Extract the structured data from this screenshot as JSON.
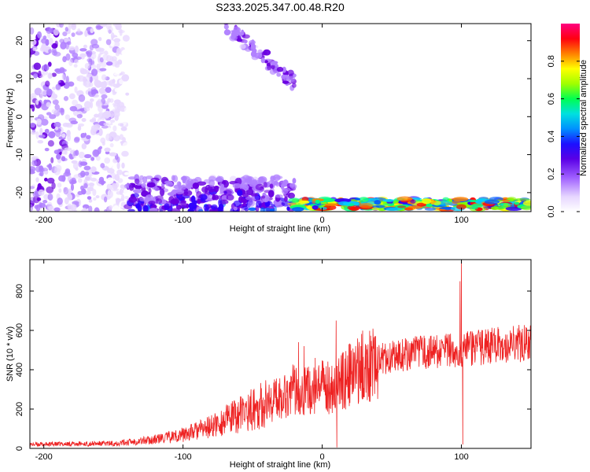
{
  "title": "S233.2025.347.00.48.R20",
  "chart_data": [
    {
      "type": "heatmap",
      "xlabel": "Height of straight line (km)",
      "ylabel": "Frequency (Hz)",
      "xlim": [
        -210,
        150
      ],
      "ylim": [
        -25,
        24.5
      ],
      "xticks": [
        -200,
        -100,
        0,
        100
      ],
      "yticks": [
        -20,
        -10,
        0,
        10,
        20
      ],
      "colorbar": {
        "label": "Normalized spectral amplitude",
        "range": [
          0,
          1
        ],
        "ticks": [
          0.0,
          0.2,
          0.4,
          0.6,
          0.8
        ],
        "tick_labels": [
          "0.0",
          "0.2",
          "0.4",
          "0.6",
          "0.8"
        ],
        "colors": [
          "#ffffff",
          "#e8d8ff",
          "#b080ff",
          "#6a00e0",
          "#3000ff",
          "#0060ff",
          "#00d0ff",
          "#00ff80",
          "#80ff00",
          "#ffff00",
          "#ff8000",
          "#ff0000",
          "#ff0080"
        ]
      },
      "regions": [
        {
          "x": [
            -210,
            -140
          ],
          "y": [
            -25,
            24.5
          ],
          "level": 0.2,
          "pattern": "scattered speckle"
        },
        {
          "x": [
            -140,
            -20
          ],
          "y": [
            -25,
            -16
          ],
          "level": 0.3,
          "pattern": "dense speckle"
        },
        {
          "x": [
            -20,
            150
          ],
          "y": [
            -25,
            -21
          ],
          "level": 0.9,
          "pattern": "narrow band"
        },
        {
          "x": [
            -70,
            -20
          ],
          "y": [
            9,
            24
          ],
          "level": 0.2,
          "pattern": "diagonal streak"
        }
      ]
    },
    {
      "type": "line",
      "xlabel": "Height of straight line (km)",
      "ylabel": "SNR (10 * v/v)",
      "xlim": [
        -210,
        150
      ],
      "ylim": [
        0,
        960
      ],
      "xticks": [
        -200,
        -100,
        0,
        100
      ],
      "yticks": [
        0,
        200,
        400,
        600,
        800
      ],
      "color": "#ee2222",
      "noise": "high-frequency jitter superimposed on the envelope",
      "envelope": [
        {
          "x": -210,
          "y": 20
        },
        {
          "x": -150,
          "y": 25
        },
        {
          "x": -120,
          "y": 45
        },
        {
          "x": -100,
          "y": 70
        },
        {
          "x": -80,
          "y": 110
        },
        {
          "x": -60,
          "y": 170
        },
        {
          "x": -40,
          "y": 230
        },
        {
          "x": -20,
          "y": 300
        },
        {
          "x": -5,
          "y": 290
        },
        {
          "x": 0,
          "y": 310
        },
        {
          "x": 10,
          "y": 320
        },
        {
          "x": 20,
          "y": 370
        },
        {
          "x": 30,
          "y": 420
        },
        {
          "x": 45,
          "y": 460
        },
        {
          "x": 60,
          "y": 480
        },
        {
          "x": 80,
          "y": 490
        },
        {
          "x": 100,
          "y": 500
        },
        {
          "x": 120,
          "y": 520
        },
        {
          "x": 150,
          "y": 540
        }
      ],
      "spikes": [
        {
          "x": -17,
          "y": 540
        },
        {
          "x": -13,
          "y": 520
        },
        {
          "x": -5,
          "y": 460
        },
        {
          "x": 10,
          "y": 650
        },
        {
          "x": 10.5,
          "y": 5
        },
        {
          "x": 99,
          "y": 850
        },
        {
          "x": 100,
          "y": 960
        },
        {
          "x": 101,
          "y": 20
        }
      ]
    }
  ]
}
